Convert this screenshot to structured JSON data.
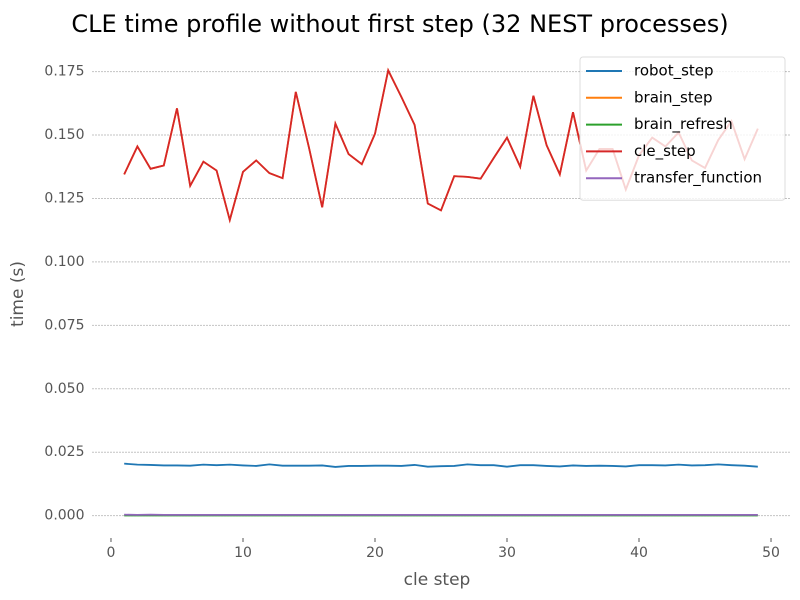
{
  "chart_data": {
    "type": "line",
    "title": "CLE time profile without first step (32 NEST processes)",
    "x_label": "cle step",
    "y_label": "time (s)",
    "x": [
      1,
      2,
      3,
      4,
      5,
      6,
      7,
      8,
      9,
      10,
      11,
      12,
      13,
      14,
      15,
      16,
      17,
      18,
      19,
      20,
      21,
      22,
      23,
      24,
      25,
      26,
      27,
      28,
      29,
      30,
      31,
      32,
      33,
      34,
      35,
      36,
      37,
      38,
      39,
      40,
      41,
      42,
      43,
      44,
      45,
      46,
      47,
      48,
      49
    ],
    "series": [
      {
        "name": "robot_step",
        "color": "#1f77b4",
        "values": [
          0.0205,
          0.0201,
          0.02,
          0.0198,
          0.0198,
          0.0197,
          0.0201,
          0.0199,
          0.0201,
          0.0198,
          0.0196,
          0.0202,
          0.0197,
          0.0197,
          0.0197,
          0.0198,
          0.0192,
          0.0196,
          0.0196,
          0.0197,
          0.0197,
          0.0196,
          0.02,
          0.0193,
          0.0195,
          0.0196,
          0.0202,
          0.0199,
          0.0199,
          0.0193,
          0.0199,
          0.0199,
          0.0196,
          0.0194,
          0.0198,
          0.0196,
          0.0197,
          0.0196,
          0.0194,
          0.0199,
          0.0199,
          0.0198,
          0.0201,
          0.0198,
          0.0199,
          0.0202,
          0.0199,
          0.0197,
          0.0193
        ]
      },
      {
        "name": "brain_step",
        "color": "#ff7f0e",
        "values": [
          0.1345,
          0.1455,
          0.1367,
          0.138,
          0.1605,
          0.13,
          0.1395,
          0.136,
          0.1165,
          0.1355,
          0.14,
          0.135,
          0.133,
          0.167,
          0.145,
          0.1215,
          0.1545,
          0.1425,
          0.1385,
          0.1505,
          0.1755,
          0.165,
          0.154,
          0.123,
          0.1203,
          0.1338,
          0.1335,
          0.1328,
          0.141,
          0.149,
          0.1375,
          0.1655,
          0.146,
          0.1345,
          0.159,
          0.136,
          0.1445,
          0.1445,
          0.1285,
          0.142,
          0.149,
          0.1455,
          0.151,
          0.14,
          0.137,
          0.148,
          0.1555,
          0.1405,
          0.1525
        ]
      },
      {
        "name": "brain_refresh",
        "color": "#2ca02c",
        "values": [
          0.0001,
          0.0001,
          0.0001,
          0.0001,
          0.0001,
          0.0001,
          0.0001,
          0.0001,
          0.0001,
          0.0001,
          0.0001,
          0.0001,
          0.0001,
          0.0001,
          0.0001,
          0.0001,
          0.0001,
          0.0001,
          0.0001,
          0.0001,
          0.0001,
          0.0001,
          0.0001,
          0.0001,
          0.0001,
          0.0001,
          0.0001,
          0.0001,
          0.0001,
          0.0001,
          0.0001,
          0.0001,
          0.0001,
          0.0001,
          0.0001,
          0.0001,
          0.0001,
          0.0001,
          0.0001,
          0.0001,
          0.0001,
          0.0001,
          0.0001,
          0.0001,
          0.0001,
          0.0001,
          0.0001,
          0.0001,
          0.0001
        ]
      },
      {
        "name": "cle_step",
        "color": "#d62728",
        "values": [
          0.1345,
          0.1455,
          0.1367,
          0.138,
          0.1605,
          0.13,
          0.1395,
          0.136,
          0.1165,
          0.1355,
          0.14,
          0.135,
          0.133,
          0.167,
          0.145,
          0.1215,
          0.1545,
          0.1425,
          0.1385,
          0.1505,
          0.1755,
          0.165,
          0.154,
          0.123,
          0.1203,
          0.1338,
          0.1335,
          0.1328,
          0.141,
          0.149,
          0.1375,
          0.1655,
          0.146,
          0.1345,
          0.159,
          0.136,
          0.1445,
          0.1445,
          0.1285,
          0.142,
          0.149,
          0.1455,
          0.151,
          0.14,
          0.137,
          0.148,
          0.1555,
          0.1405,
          0.1525
        ]
      },
      {
        "name": "transfer_function",
        "color": "#9467bd",
        "values": [
          0.0004,
          0.0003,
          0.0004,
          0.0003,
          0.0003,
          0.0003,
          0.0003,
          0.0003,
          0.0003,
          0.0003,
          0.0003,
          0.0003,
          0.0003,
          0.0003,
          0.0003,
          0.0003,
          0.0003,
          0.0003,
          0.0003,
          0.0003,
          0.0003,
          0.0003,
          0.0003,
          0.0003,
          0.0003,
          0.0003,
          0.0003,
          0.0003,
          0.0003,
          0.0003,
          0.0003,
          0.0003,
          0.0003,
          0.0003,
          0.0003,
          0.0003,
          0.0003,
          0.0003,
          0.0003,
          0.0003,
          0.0003,
          0.0003,
          0.0003,
          0.0003,
          0.0003,
          0.0003,
          0.0003,
          0.0003,
          0.0003
        ]
      }
    ],
    "xlim": [
      -1.4,
      51.4
    ],
    "ylim": [
      -0.0088,
      0.1843
    ],
    "xticks": [
      0,
      10,
      20,
      30,
      40,
      50
    ],
    "yticks": [
      {
        "value": 0,
        "label": "0.000"
      },
      {
        "value": 0.025,
        "label": "0.025"
      },
      {
        "value": 0.05,
        "label": "0.050"
      },
      {
        "value": 0.075,
        "label": "0.075"
      },
      {
        "value": 0.1,
        "label": "0.100"
      },
      {
        "value": 0.125,
        "label": "0.125"
      },
      {
        "value": 0.15,
        "label": "0.150"
      },
      {
        "value": 0.175,
        "label": "0.175"
      }
    ],
    "grid": true,
    "legend": "upper right"
  }
}
